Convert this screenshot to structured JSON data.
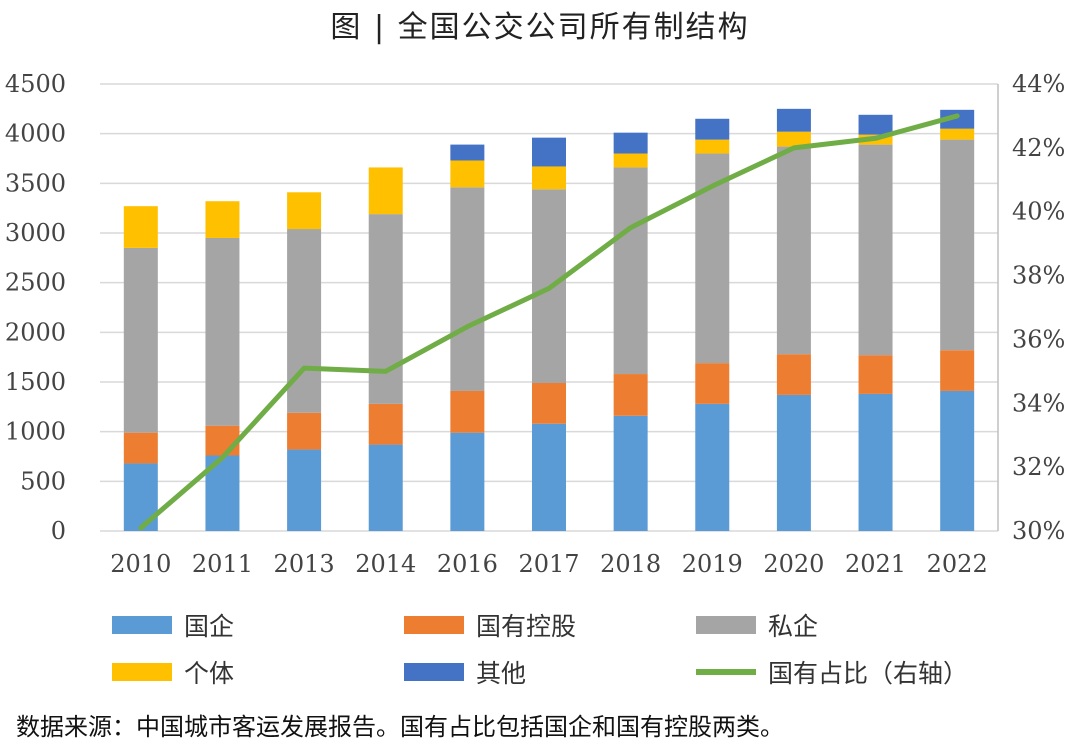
{
  "title": "图 | 全国公交公司所有制结构",
  "source_note": "数据来源：中国城市客运发展报告。国有占比包括国企和国有控股两类。",
  "chart_data": {
    "type": "bar",
    "stacked": true,
    "categories": [
      "2010",
      "2011",
      "2013",
      "2014",
      "2016",
      "2017",
      "2018",
      "2019",
      "2020",
      "2021",
      "2022"
    ],
    "series": [
      {
        "name": "国企",
        "color": "#5B9BD5",
        "values": [
          680,
          760,
          820,
          870,
          990,
          1080,
          1160,
          1280,
          1370,
          1380,
          1410
        ]
      },
      {
        "name": "国有控股",
        "color": "#ED7D31",
        "values": [
          310,
          300,
          370,
          410,
          420,
          410,
          420,
          410,
          410,
          390,
          410
        ]
      },
      {
        "name": "私企",
        "color": "#A5A5A5",
        "values": [
          1860,
          1890,
          1850,
          1910,
          2050,
          1950,
          2080,
          2110,
          2090,
          2120,
          2120
        ]
      },
      {
        "name": "个体",
        "color": "#FFC000",
        "values": [
          420,
          370,
          370,
          470,
          270,
          230,
          140,
          140,
          150,
          100,
          110
        ]
      },
      {
        "name": "其他",
        "color": "#4472C4",
        "values": [
          0,
          0,
          0,
          0,
          160,
          290,
          210,
          210,
          230,
          200,
          190
        ]
      }
    ],
    "line_series": {
      "name": "国有占比（右轴）",
      "color": "#70AD47",
      "axis": "right",
      "values": [
        30.1,
        32.3,
        35.1,
        35.0,
        36.4,
        37.6,
        39.5,
        40.8,
        42.0,
        42.3,
        43.0
      ]
    },
    "ylim": [
      0,
      4500
    ],
    "yticks": [
      "0",
      "500",
      "1000",
      "1500",
      "2000",
      "2500",
      "3000",
      "3500",
      "4000",
      "4500"
    ],
    "y2lim": [
      30,
      44
    ],
    "y2ticks": [
      "30%",
      "32%",
      "34%",
      "36%",
      "38%",
      "40%",
      "42%",
      "44%"
    ],
    "grid": true,
    "legend_position": "bottom"
  }
}
